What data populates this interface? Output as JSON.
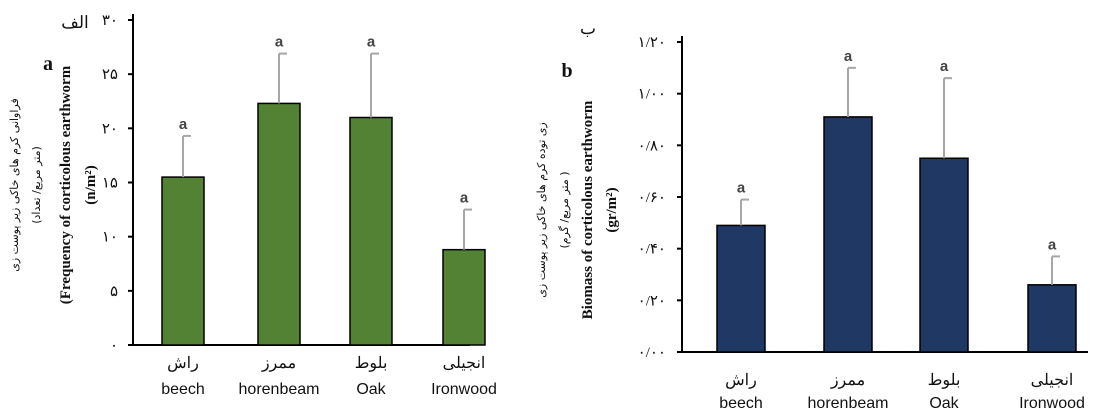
{
  "chart_data": [
    {
      "type": "bar",
      "panel_label_fa": "الف",
      "panel_label_en": "a",
      "ylabel_fa_1": "فراوانی کرم های خاکی زیر پوست زی",
      "ylabel_fa_2": "(متر مربع/ تعداد)",
      "ylabel_en_1": "(Frequency of corticolous earthworm",
      "ylabel_en_2": "(n/m²)",
      "ylim": [
        0,
        30
      ],
      "yticks": [
        "۰",
        "۵",
        "۱۰",
        "۱۵",
        "۲۰",
        "۲۵",
        "۳۰"
      ],
      "categories_fa": [
        "راش",
        "ممرز",
        "بلوط",
        "انجیلی"
      ],
      "categories_en": [
        "beech",
        "horenbeam",
        "Oak",
        "Ironwood"
      ],
      "values": [
        15.5,
        22.3,
        21.0,
        8.8
      ],
      "error_upper": [
        19.3,
        26.9,
        26.9,
        12.5
      ],
      "significance": [
        "a",
        "a",
        "a",
        "a"
      ],
      "bar_color": "#548235"
    },
    {
      "type": "bar",
      "panel_label_fa": "ب",
      "panel_label_en": "b",
      "ylabel_fa_1": "زی توده کرم های خاکی زیر پوست زی",
      "ylabel_fa_2": "(متر مربع/ گرم )",
      "ylabel_en_1": "Biomass of corticolous earthworm",
      "ylabel_en_2": "(gr/m²)",
      "ylim": [
        0,
        1.2
      ],
      "yticks": [
        "۰/۰۰",
        "۰/۲۰",
        "۰/۴۰",
        "۰/۶۰",
        "۰/۸۰",
        "۱/۰۰",
        "۱/۲۰"
      ],
      "categories_fa": [
        "راش",
        "ممرز",
        "بلوط",
        "انجیلی"
      ],
      "categories_en": [
        "beech",
        "horenbeam",
        "Oak",
        "Ironwood"
      ],
      "values": [
        0.49,
        0.91,
        0.75,
        0.26
      ],
      "error_upper": [
        0.59,
        1.1,
        1.06,
        0.37
      ],
      "significance": [
        "a",
        "a",
        "a",
        "a"
      ],
      "bar_color": "#203864"
    }
  ]
}
